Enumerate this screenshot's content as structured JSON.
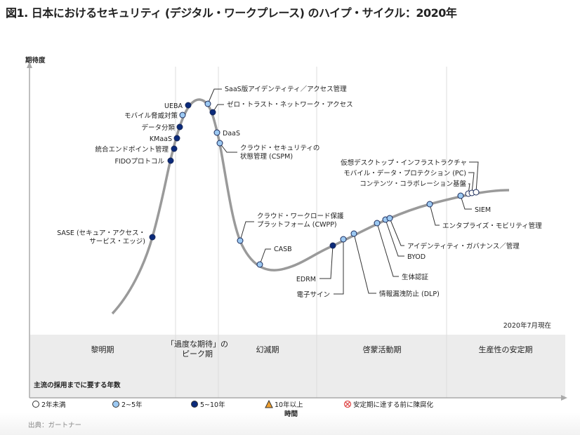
{
  "title": "図1. 日本におけるセキュリティ (デジタル・ワークプレース) のハイプ・サイクル：2020年",
  "y_axis_label": "期待度",
  "x_axis_label": "時間",
  "as_of": "2020年7月現在",
  "phases": [
    "黎明期",
    "「過度な期待」の\nピーク期",
    "幻滅期",
    "啓蒙活動期",
    "生産性の安定期"
  ],
  "colors": {
    "lt2": "#ffffff",
    "y2to5": "#9cc9f2",
    "y5to10": "#0b2a7a",
    "y10plus": "#f0a030",
    "obsolete": "#e05050",
    "curve": "#9a9a9a"
  },
  "technologies": [
    {
      "label": "SASE (セキュア・アクセス・\nサービス・エッジ)",
      "years": "5~10"
    },
    {
      "label": "FIDOプロトコル",
      "years": "5~10"
    },
    {
      "label": "統合エンドポイント管理",
      "years": "5~10"
    },
    {
      "label": "KMaaS",
      "years": "5~10"
    },
    {
      "label": "データ分類",
      "years": "5~10"
    },
    {
      "label": "モバイル脅威対策",
      "years": "2~5"
    },
    {
      "label": "UEBA",
      "years": "5~10"
    },
    {
      "label": "SaaS版アイデンティティ／アクセス管理",
      "years": "2~5"
    },
    {
      "label": "ゼロ・トラスト・ネットワーク・アクセス",
      "years": "5~10"
    },
    {
      "label": "DaaS",
      "years": "2~5"
    },
    {
      "label": "クラウド・セキュリティの\n状態管理 (CSPM)",
      "years": "2~5"
    },
    {
      "label": "クラウド・ワークロード保護\nプラットフォーム (CWPP)",
      "years": "2~5"
    },
    {
      "label": "CASB",
      "years": "2~5"
    },
    {
      "label": "EDRM",
      "years": "5~10"
    },
    {
      "label": "電子サイン",
      "years": "2~5"
    },
    {
      "label": "情報漏洩防止 (DLP)",
      "years": "2~5"
    },
    {
      "label": "生体認証",
      "years": "2~5"
    },
    {
      "label": "BYOD",
      "years": "2~5"
    },
    {
      "label": "アイデンティティ・ガバナンス／管理",
      "years": "2~5"
    },
    {
      "label": "エンタプライズ・モビリティ管理",
      "years": "2~5"
    },
    {
      "label": "SIEM",
      "years": "2~5"
    },
    {
      "label": "コンテンツ・コラボレーション基盤",
      "years": "<2"
    },
    {
      "label": "モバイル・データ・プロテクション (PC)",
      "years": "<2"
    },
    {
      "label": "仮想デスクトップ・インフラストラクチャ",
      "years": "<2"
    }
  ],
  "legend": {
    "title": "主流の採用までに要する年数",
    "items": [
      {
        "label": "2年未満",
        "shape": "circle",
        "color": "#ffffff"
      },
      {
        "label": "2~5年",
        "shape": "circle",
        "color": "#9cc9f2"
      },
      {
        "label": "5~10年",
        "shape": "circle",
        "color": "#0b2a7a"
      },
      {
        "label": "10年以上",
        "shape": "triangle",
        "color": "#f0a030"
      },
      {
        "label": "安定期に達する前に陳腐化",
        "shape": "crossed-circle",
        "color": "#e05050"
      }
    ]
  },
  "source": "出典：ガートナー"
}
